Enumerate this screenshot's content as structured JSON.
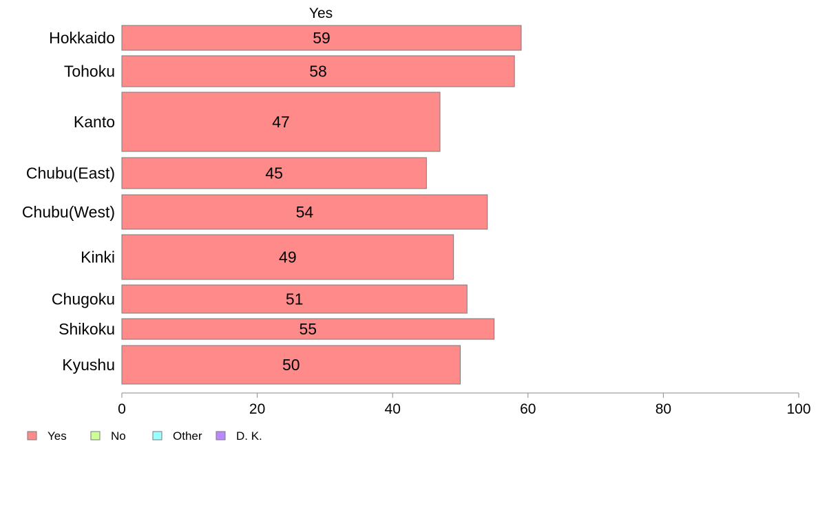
{
  "chart_data": {
    "type": "bar",
    "orientation": "horizontal",
    "stacked": true,
    "title": "Yes",
    "categories": [
      "Hokkaido",
      "Tohoku",
      "Kanto",
      "Chubu(East)",
      "Chubu(West)",
      "Kinki",
      "Chugoku",
      "Shikoku",
      "Kyushu"
    ],
    "series": [
      {
        "name": "Yes",
        "color": "#ff8a8a",
        "values": [
          59,
          58,
          47,
          45,
          54,
          49,
          51,
          55,
          50
        ],
        "labels": [
          "59",
          "58",
          "47",
          "45",
          "54",
          "49",
          "51",
          "55",
          "50"
        ]
      }
    ],
    "xlim": [
      0,
      100
    ],
    "xticks": [
      0,
      20,
      40,
      60,
      80,
      100
    ],
    "xtick_labels": [
      "0",
      "20",
      "40",
      "60",
      "80",
      "100"
    ],
    "grid": false,
    "legend": {
      "position": "bottom-left",
      "entries": [
        {
          "label": "Yes",
          "color": "#ff8a8a"
        },
        {
          "label": "No",
          "color": "#ccff99"
        },
        {
          "label": "Other",
          "color": "#99ffff"
        },
        {
          "label": "D. K.",
          "color": "#bb88ff"
        }
      ]
    }
  }
}
